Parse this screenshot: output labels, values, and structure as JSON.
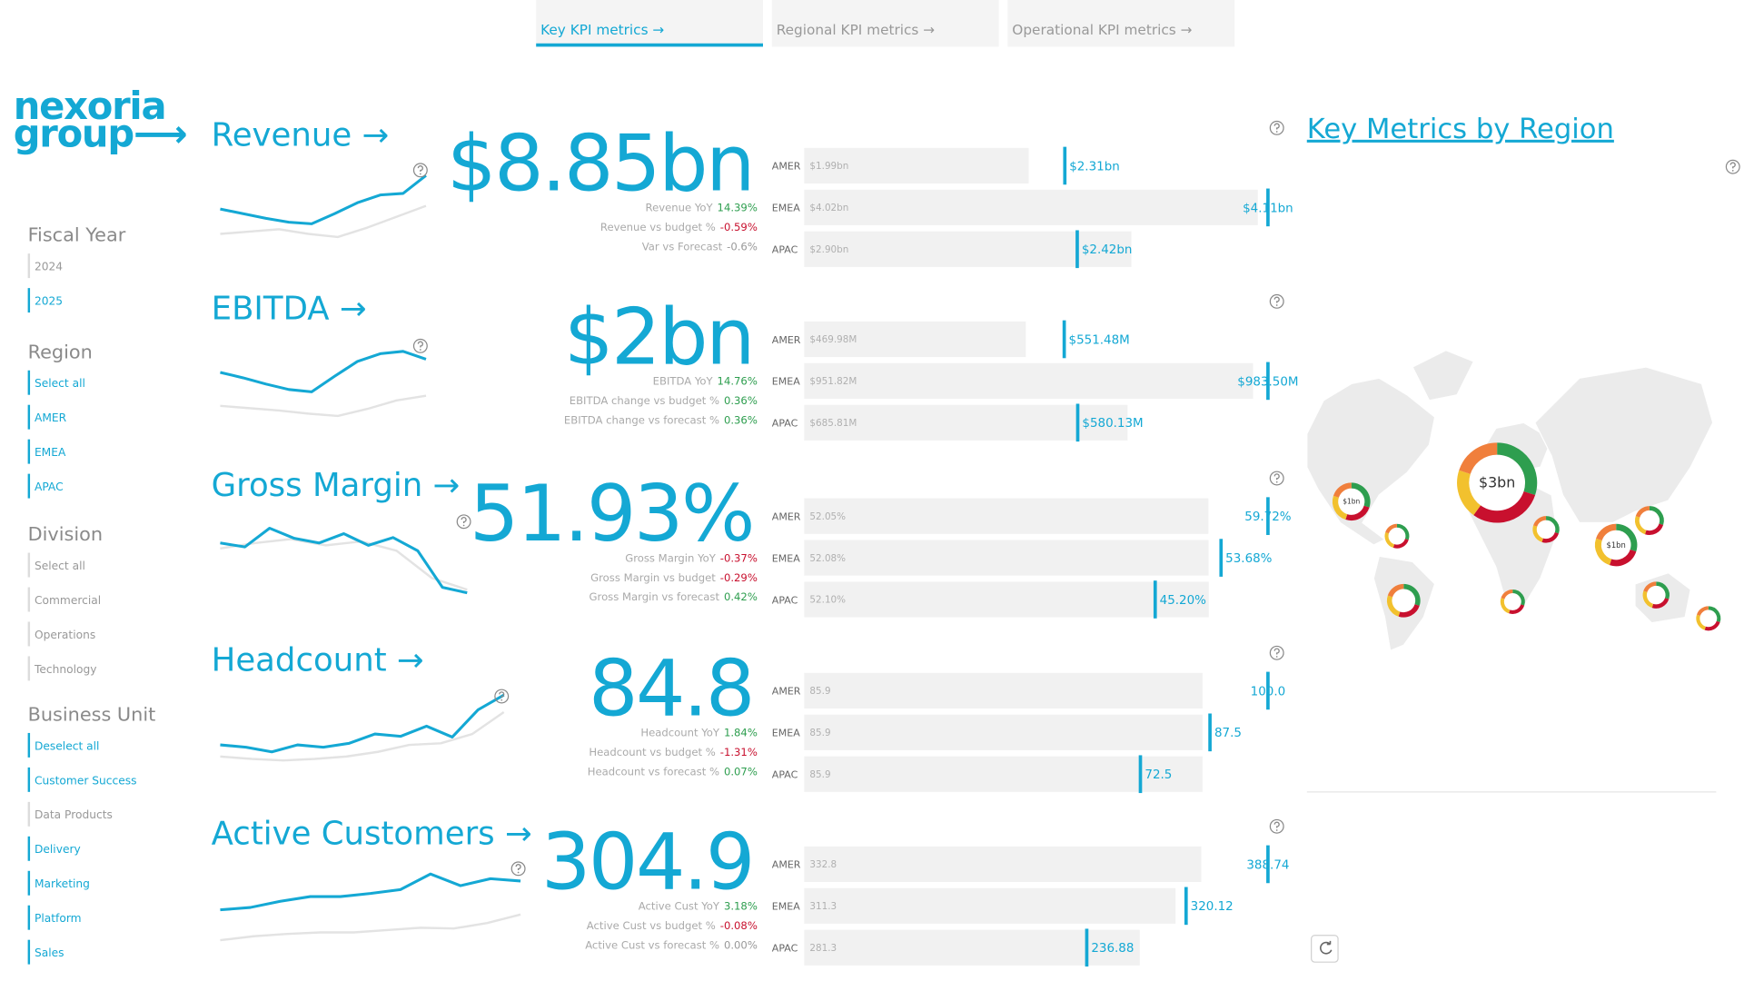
{
  "tabs": [
    {
      "label": "Key KPI metrics →",
      "active": true
    },
    {
      "label": "Regional KPI metrics →",
      "active": false
    },
    {
      "label": "Operational KPI metrics →",
      "active": false
    }
  ],
  "logo": {
    "line1": "nexoria",
    "line2": "group⟶"
  },
  "slicers": [
    {
      "title": "Fiscal Year",
      "items": [
        {
          "label": "2024",
          "selected": false
        },
        {
          "label": "2025",
          "selected": true
        }
      ]
    },
    {
      "title": "Region",
      "items": [
        {
          "label": "Select all",
          "selected": true
        },
        {
          "label": "AMER",
          "selected": true
        },
        {
          "label": "EMEA",
          "selected": true
        },
        {
          "label": "APAC",
          "selected": true
        }
      ]
    },
    {
      "title": "Division",
      "items": [
        {
          "label": "Select all",
          "selected": false
        },
        {
          "label": "Commercial",
          "selected": false
        },
        {
          "label": "Operations",
          "selected": false
        },
        {
          "label": "Technology",
          "selected": false
        }
      ]
    },
    {
      "title": "Business Unit",
      "items": [
        {
          "label": "Deselect all",
          "selected": true
        },
        {
          "label": "Customer Success",
          "selected": true
        },
        {
          "label": "Data Products",
          "selected": false
        },
        {
          "label": "Delivery",
          "selected": true
        },
        {
          "label": "Marketing",
          "selected": true
        },
        {
          "label": "Platform",
          "selected": true
        },
        {
          "label": "Sales",
          "selected": true
        }
      ]
    }
  ],
  "kpis": [
    {
      "title": "Revenue →",
      "value": "$8.85bn",
      "details": [
        {
          "label": "Revenue YoY",
          "value": "14.39%",
          "color": "#2e9e4f"
        },
        {
          "label": "Revenue vs budget %",
          "value": "-0.59%",
          "color": "#c8102e"
        },
        {
          "label": "Var vs Forecast",
          "value": "-0.6%",
          "color": "#999999"
        }
      ],
      "trend": {
        "ylim": [
          0,
          100
        ],
        "current": [
          43,
          37,
          31,
          26,
          24,
          37,
          51,
          61,
          63,
          86
        ],
        "prior": [
          11,
          14,
          17,
          11,
          7,
          19,
          33,
          47
        ]
      },
      "regions": [
        {
          "name": "AMER",
          "target": 1.99,
          "target_label": "$1.99bn",
          "actual": 2.31,
          "actual_label": "$2.31bn"
        },
        {
          "name": "EMEA",
          "target": 4.02,
          "target_label": "$4.02bn",
          "actual": 4.11,
          "actual_label": "$4.11bn"
        },
        {
          "name": "APAC",
          "target": 2.9,
          "target_label": "$2.90bn",
          "actual": 2.42,
          "actual_label": "$2.42bn"
        }
      ]
    },
    {
      "title": "EBITDA →",
      "value": "$2bn",
      "details": [
        {
          "label": "EBITDA YoY",
          "value": "14.76%",
          "color": "#2e9e4f"
        },
        {
          "label": "EBITDA change vs budget %",
          "value": "0.36%",
          "color": "#2e9e4f"
        },
        {
          "label": "EBITDA change vs forecast %",
          "value": "0.36%",
          "color": "#2e9e4f"
        }
      ],
      "trend": {
        "ylim": [
          0,
          100
        ],
        "current": [
          56,
          49,
          41,
          34,
          31,
          51,
          70,
          80,
          83,
          73
        ],
        "prior": [
          13,
          10,
          7,
          3,
          0,
          9,
          20,
          26
        ]
      },
      "regions": [
        {
          "name": "AMER",
          "target": 469.98,
          "target_label": "$469.98M",
          "actual": 551.48,
          "actual_label": "$551.48M"
        },
        {
          "name": "EMEA",
          "target": 951.82,
          "target_label": "$951.82M",
          "actual": 983.5,
          "actual_label": "$983.50M"
        },
        {
          "name": "APAC",
          "target": 685.81,
          "target_label": "$685.81M",
          "actual": 580.13,
          "actual_label": "$580.13M"
        }
      ]
    },
    {
      "title": "Gross Margin →",
      "value": "51.93%",
      "details": [
        {
          "label": "Gross Margin YoY",
          "value": "-0.37%",
          "color": "#c8102e"
        },
        {
          "label": "Gross Margin vs budget",
          "value": "-0.29%",
          "color": "#c8102e"
        },
        {
          "label": "Gross Margin vs forecast",
          "value": "0.42%",
          "color": "#2e9e4f"
        }
      ],
      "trend": {
        "ylim": [
          0,
          100
        ],
        "current": [
          64,
          59,
          83,
          70,
          64,
          76,
          61,
          71,
          54,
          7,
          0
        ],
        "prior": [
          57,
          64,
          69,
          61,
          66,
          54,
          19,
          4
        ]
      },
      "regions": [
        {
          "name": "AMER",
          "target": 52.05,
          "target_label": "52.05%",
          "actual": 59.72,
          "actual_label": "59.72%"
        },
        {
          "name": "EMEA",
          "target": 52.08,
          "target_label": "52.08%",
          "actual": 53.68,
          "actual_label": "53.68%"
        },
        {
          "name": "APAC",
          "target": 52.1,
          "target_label": "52.10%",
          "actual": 45.2,
          "actual_label": "45.20%"
        }
      ]
    },
    {
      "title": "Headcount →",
      "value": "84.8",
      "details": [
        {
          "label": "Headcount YoY",
          "value": "1.84%",
          "color": "#2e9e4f"
        },
        {
          "label": "Headcount vs budget %",
          "value": "-1.31%",
          "color": "#c8102e"
        },
        {
          "label": "Headcount vs forecast %",
          "value": "0.07%",
          "color": "#2e9e4f"
        }
      ],
      "trend": {
        "ylim": [
          0,
          100
        ],
        "current": [
          29,
          26,
          20,
          29,
          26,
          31,
          43,
          40,
          53,
          39,
          74,
          93
        ],
        "prior": [
          14,
          11,
          9,
          11,
          14,
          20,
          29,
          31,
          43,
          71
        ]
      },
      "regions": [
        {
          "name": "AMER",
          "target": 85.9,
          "target_label": "85.9",
          "actual": 100.0,
          "actual_label": "100.0"
        },
        {
          "name": "EMEA",
          "target": 85.9,
          "target_label": "85.9",
          "actual": 87.5,
          "actual_label": "87.5"
        },
        {
          "name": "APAC",
          "target": 85.9,
          "target_label": "85.9",
          "actual": 72.5,
          "actual_label": "72.5"
        }
      ]
    },
    {
      "title": "Active Customers →",
      "value": "304.9",
      "details": [
        {
          "label": "Active Cust YoY",
          "value": "3.18%",
          "color": "#2e9e4f"
        },
        {
          "label": "Active Cust vs budget %",
          "value": "-0.08%",
          "color": "#c8102e"
        },
        {
          "label": "Active Cust vs forecast %",
          "value": "0.00%",
          "color": "#999999"
        }
      ],
      "trend": {
        "ylim": [
          0,
          100
        ],
        "current": [
          40,
          43,
          51,
          57,
          57,
          61,
          66,
          86,
          71,
          80,
          77
        ],
        "prior": [
          1,
          6,
          9,
          11,
          11,
          14,
          17,
          16,
          23,
          34
        ]
      },
      "regions": [
        {
          "name": "AMER",
          "target": 332.8,
          "target_label": "332.8",
          "actual": 388.74,
          "actual_label": "388.74"
        },
        {
          "name": "EMEA",
          "target": 311.3,
          "target_label": "311.3",
          "actual": 320.12,
          "actual_label": "320.12"
        },
        {
          "name": "APAC",
          "target": 281.3,
          "target_label": "281.3",
          "actual": 236.88,
          "actual_label": "236.88"
        }
      ]
    }
  ],
  "map": {
    "title": "Key Metrics by Region",
    "segment_colors": [
      "#2e9e4f",
      "#c8102e",
      "#f2c12e",
      "#f07f3c"
    ],
    "donuts": [
      {
        "label": "$3bn",
        "shares": [
          30,
          30,
          20,
          20
        ]
      },
      {
        "label": "$1bn",
        "shares": [
          30,
          25,
          25,
          20
        ]
      },
      {
        "shares": [
          30,
          25,
          25,
          20
        ]
      },
      {
        "shares": [
          30,
          25,
          25,
          20
        ]
      },
      {
        "shares": [
          30,
          25,
          25,
          20
        ]
      },
      {
        "shares": [
          30,
          25,
          25,
          20
        ]
      },
      {
        "label": "$1bn",
        "shares": [
          30,
          25,
          25,
          20
        ]
      },
      {
        "shares": [
          30,
          25,
          25,
          20
        ]
      },
      {
        "shares": [
          30,
          25,
          25,
          20
        ]
      },
      {
        "shares": [
          30,
          25,
          25,
          20
        ]
      }
    ]
  }
}
